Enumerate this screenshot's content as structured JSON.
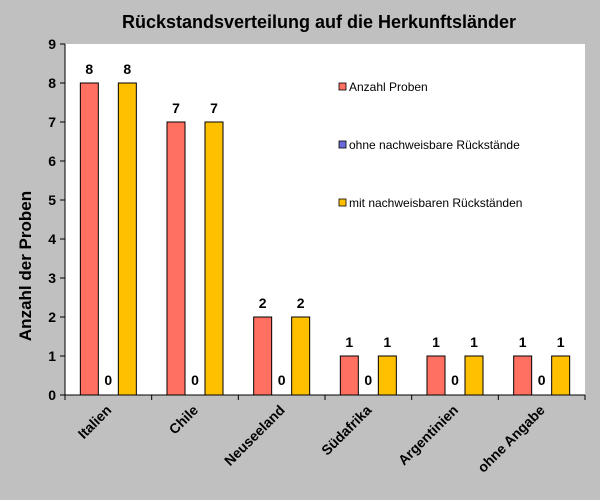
{
  "chart_data": {
    "type": "bar",
    "title": "Rückstandsverteilung  auf die Herkunftsländer",
    "ylabel": "Anzahl der Proben",
    "xlabel": "",
    "ylim": [
      0,
      9
    ],
    "yticks": [
      0,
      1,
      2,
      3,
      4,
      5,
      6,
      7,
      8,
      9
    ],
    "grid": false,
    "legend_position": "right",
    "categories": [
      "Italien",
      "Chile",
      "Neuseeland",
      "Südafrika",
      "Argentinien",
      "ohne Angabe"
    ],
    "series": [
      {
        "name": "Anzahl Proben",
        "color": "#ff7060",
        "values": [
          8,
          7,
          2,
          1,
          1,
          1
        ]
      },
      {
        "name": "ohne nachweisbare Rückstände",
        "color": "#6a6ad8",
        "values": [
          0,
          0,
          0,
          0,
          0,
          0
        ]
      },
      {
        "name": "mit nachweisbaren Rückständen",
        "color": "#ffc000",
        "values": [
          8,
          7,
          2,
          1,
          1,
          1
        ]
      }
    ]
  }
}
